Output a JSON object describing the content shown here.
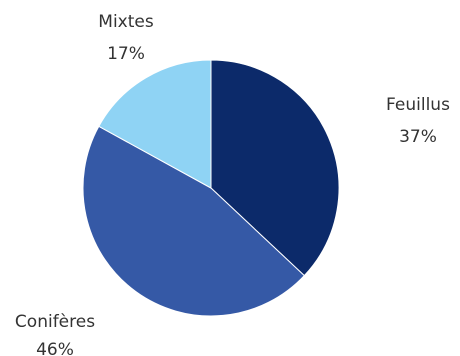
{
  "chart_data": {
    "type": "pie",
    "title": "",
    "slices": [
      {
        "label": "Feuillus",
        "value": 37,
        "display": "37%",
        "color": "#0c2a6a"
      },
      {
        "label": "Conifères",
        "value": 46,
        "display": "46%",
        "color": "#3559a6"
      },
      {
        "label": "Mixtes",
        "value": 17,
        "display": "17%",
        "color": "#8fd3f4"
      }
    ],
    "start": "top",
    "direction": "clockwise",
    "legend": "none",
    "labels": "outside"
  }
}
